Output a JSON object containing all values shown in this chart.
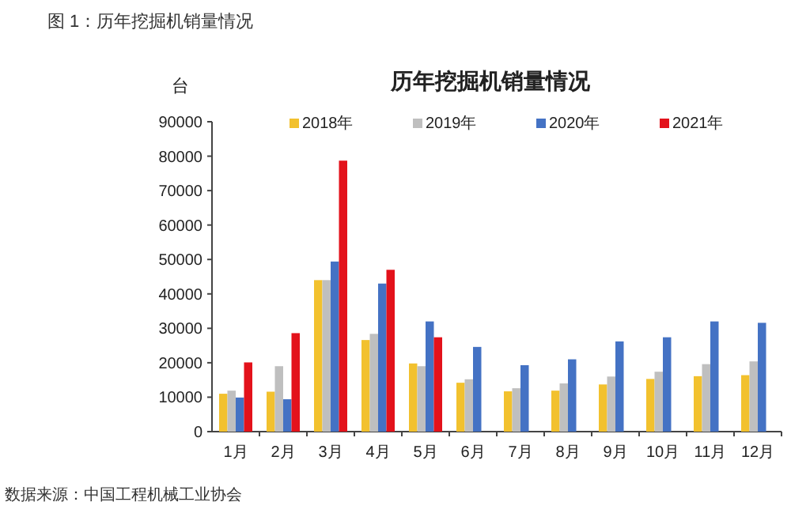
{
  "chart_data": {
    "type": "bar",
    "title": "历年挖掘机销量情况",
    "subtitle": "图 1：历年挖掘机销量情况",
    "ylabel": "台",
    "annotations": [
      "数据来源：中国工程机械工业协会"
    ],
    "categories": [
      "1月",
      "2月",
      "3月",
      "4月",
      "5月",
      "6月",
      "7月",
      "8月",
      "9月",
      "10月",
      "11月",
      "12月"
    ],
    "series": [
      {
        "name": "2018年",
        "color": "#f2c12e",
        "values": [
          11000,
          11600,
          44000,
          26600,
          19800,
          14200,
          11700,
          11900,
          13700,
          15300,
          16100,
          16400
        ]
      },
      {
        "name": "2019年",
        "color": "#bfbfbf",
        "values": [
          11900,
          19000,
          44000,
          28400,
          19000,
          15200,
          12600,
          14000,
          16000,
          17400,
          19600,
          20400
        ]
      },
      {
        "name": "2020年",
        "color": "#4472c4",
        "values": [
          9900,
          9400,
          49400,
          43000,
          32000,
          24600,
          19300,
          21000,
          26200,
          27400,
          32000,
          31600
        ]
      },
      {
        "name": "2021年",
        "color": "#e3121b",
        "values": [
          20100,
          28600,
          78700,
          47000,
          27400,
          null,
          null,
          null,
          null,
          null,
          null,
          null
        ]
      }
    ],
    "ylim": [
      0,
      90000
    ],
    "yticks": [
      0,
      10000,
      20000,
      30000,
      40000,
      50000,
      60000,
      70000,
      80000,
      90000
    ],
    "legend": "top",
    "grid": false
  }
}
